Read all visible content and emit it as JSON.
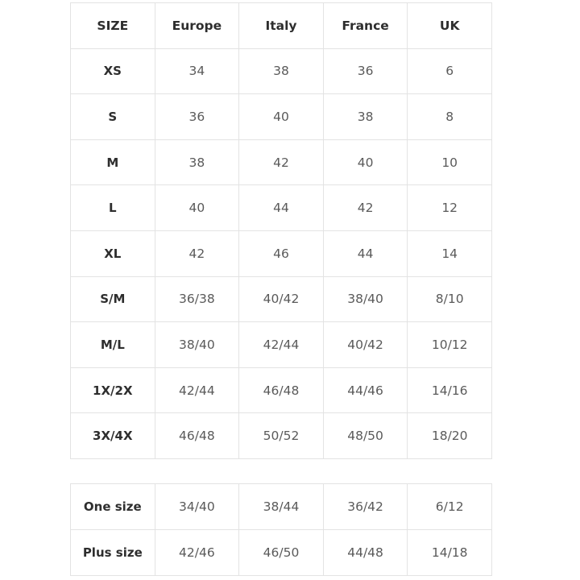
{
  "size_table": {
    "headers": [
      "SIZE",
      "Europe",
      "Italy",
      "France",
      "UK"
    ],
    "rows": [
      [
        "XS",
        "34",
        "38",
        "36",
        "6"
      ],
      [
        "S",
        "36",
        "40",
        "38",
        "8"
      ],
      [
        "M",
        "38",
        "42",
        "40",
        "10"
      ],
      [
        "L",
        "40",
        "44",
        "42",
        "12"
      ],
      [
        "XL",
        "42",
        "46",
        "44",
        "14"
      ],
      [
        "S/M",
        "36/38",
        "40/42",
        "38/40",
        "8/10"
      ],
      [
        "M/L",
        "38/40",
        "42/44",
        "40/42",
        "10/12"
      ],
      [
        "1X/2X",
        "42/44",
        "46/48",
        "44/46",
        "14/16"
      ],
      [
        "3X/4X",
        "46/48",
        "50/52",
        "48/50",
        "18/20"
      ]
    ]
  },
  "special_table": {
    "rows": [
      [
        "One size",
        "34/40",
        "38/44",
        "36/42",
        "6/12"
      ],
      [
        "Plus size",
        "42/46",
        "46/50",
        "44/48",
        "14/18"
      ]
    ]
  }
}
